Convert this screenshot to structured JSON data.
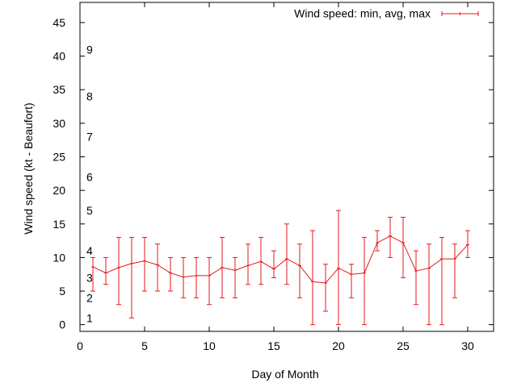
{
  "chart_data": {
    "type": "line",
    "title": "",
    "xlabel": "Day of Month",
    "ylabel": "Wind speed (kt - Beaufort)",
    "xlim": [
      0,
      32
    ],
    "ylim": [
      -1,
      48
    ],
    "xticks": [
      0,
      5,
      10,
      15,
      20,
      25,
      30
    ],
    "yticks": [
      0,
      5,
      10,
      15,
      20,
      25,
      30,
      35,
      40,
      45
    ],
    "grid": false,
    "legend_position": "top-right",
    "series": [
      {
        "name": "Wind speed: min, avg, max",
        "color": "#e41a1c",
        "style": "errorbars-line",
        "points": [
          {
            "x": 1,
            "avg": 8.6,
            "min": 5,
            "max": 10
          },
          {
            "x": 2,
            "avg": 7.7,
            "min": 6,
            "max": 10
          },
          {
            "x": 3,
            "avg": 8.5,
            "min": 3,
            "max": 13
          },
          {
            "x": 4,
            "avg": 9.1,
            "min": 1,
            "max": 13
          },
          {
            "x": 5,
            "avg": 9.5,
            "min": 5,
            "max": 13
          },
          {
            "x": 6,
            "avg": 8.9,
            "min": 5,
            "max": 12
          },
          {
            "x": 7,
            "avg": 7.7,
            "min": 5,
            "max": 10
          },
          {
            "x": 8,
            "avg": 7.1,
            "min": 4,
            "max": 10
          },
          {
            "x": 9,
            "avg": 7.3,
            "min": 4,
            "max": 10
          },
          {
            "x": 10,
            "avg": 7.3,
            "min": 3,
            "max": 10
          },
          {
            "x": 11,
            "avg": 8.5,
            "min": 4,
            "max": 13
          },
          {
            "x": 12,
            "avg": 8.1,
            "min": 4,
            "max": 10
          },
          {
            "x": 13,
            "avg": 8.8,
            "min": 6,
            "max": 12
          },
          {
            "x": 14,
            "avg": 9.4,
            "min": 6,
            "max": 13
          },
          {
            "x": 15,
            "avg": 8.3,
            "min": 7,
            "max": 11
          },
          {
            "x": 16,
            "avg": 9.8,
            "min": 6,
            "max": 15
          },
          {
            "x": 17,
            "avg": 8.8,
            "min": 4,
            "max": 12
          },
          {
            "x": 18,
            "avg": 6.4,
            "min": 0,
            "max": 14
          },
          {
            "x": 19,
            "avg": 6.2,
            "min": 2,
            "max": 9
          },
          {
            "x": 20,
            "avg": 8.4,
            "min": 0,
            "max": 17
          },
          {
            "x": 21,
            "avg": 7.5,
            "min": 4,
            "max": 9
          },
          {
            "x": 22,
            "avg": 7.7,
            "min": 0,
            "max": 13
          },
          {
            "x": 23,
            "avg": 12.2,
            "min": 11,
            "max": 14
          },
          {
            "x": 24,
            "avg": 13.2,
            "min": 10,
            "max": 16
          },
          {
            "x": 25,
            "avg": 12.2,
            "min": 7,
            "max": 16
          },
          {
            "x": 26,
            "avg": 8.0,
            "min": 3,
            "max": 11
          },
          {
            "x": 27,
            "avg": 8.4,
            "min": 0,
            "max": 12
          },
          {
            "x": 28,
            "avg": 9.8,
            "min": 0,
            "max": 13
          },
          {
            "x": 29,
            "avg": 9.8,
            "min": 4,
            "max": 12
          },
          {
            "x": 30,
            "avg": 11.9,
            "min": 10,
            "max": 14
          }
        ]
      }
    ],
    "beaufort_labels": [
      {
        "label": "1",
        "y": 1.0
      },
      {
        "label": "2",
        "y": 4.0
      },
      {
        "label": "3",
        "y": 7.0
      },
      {
        "label": "4",
        "y": 11.0
      },
      {
        "label": "5",
        "y": 17.0
      },
      {
        "label": "6",
        "y": 22.0
      },
      {
        "label": "7",
        "y": 28.0
      },
      {
        "label": "8",
        "y": 34.0
      },
      {
        "label": "9",
        "y": 41.0
      }
    ]
  }
}
